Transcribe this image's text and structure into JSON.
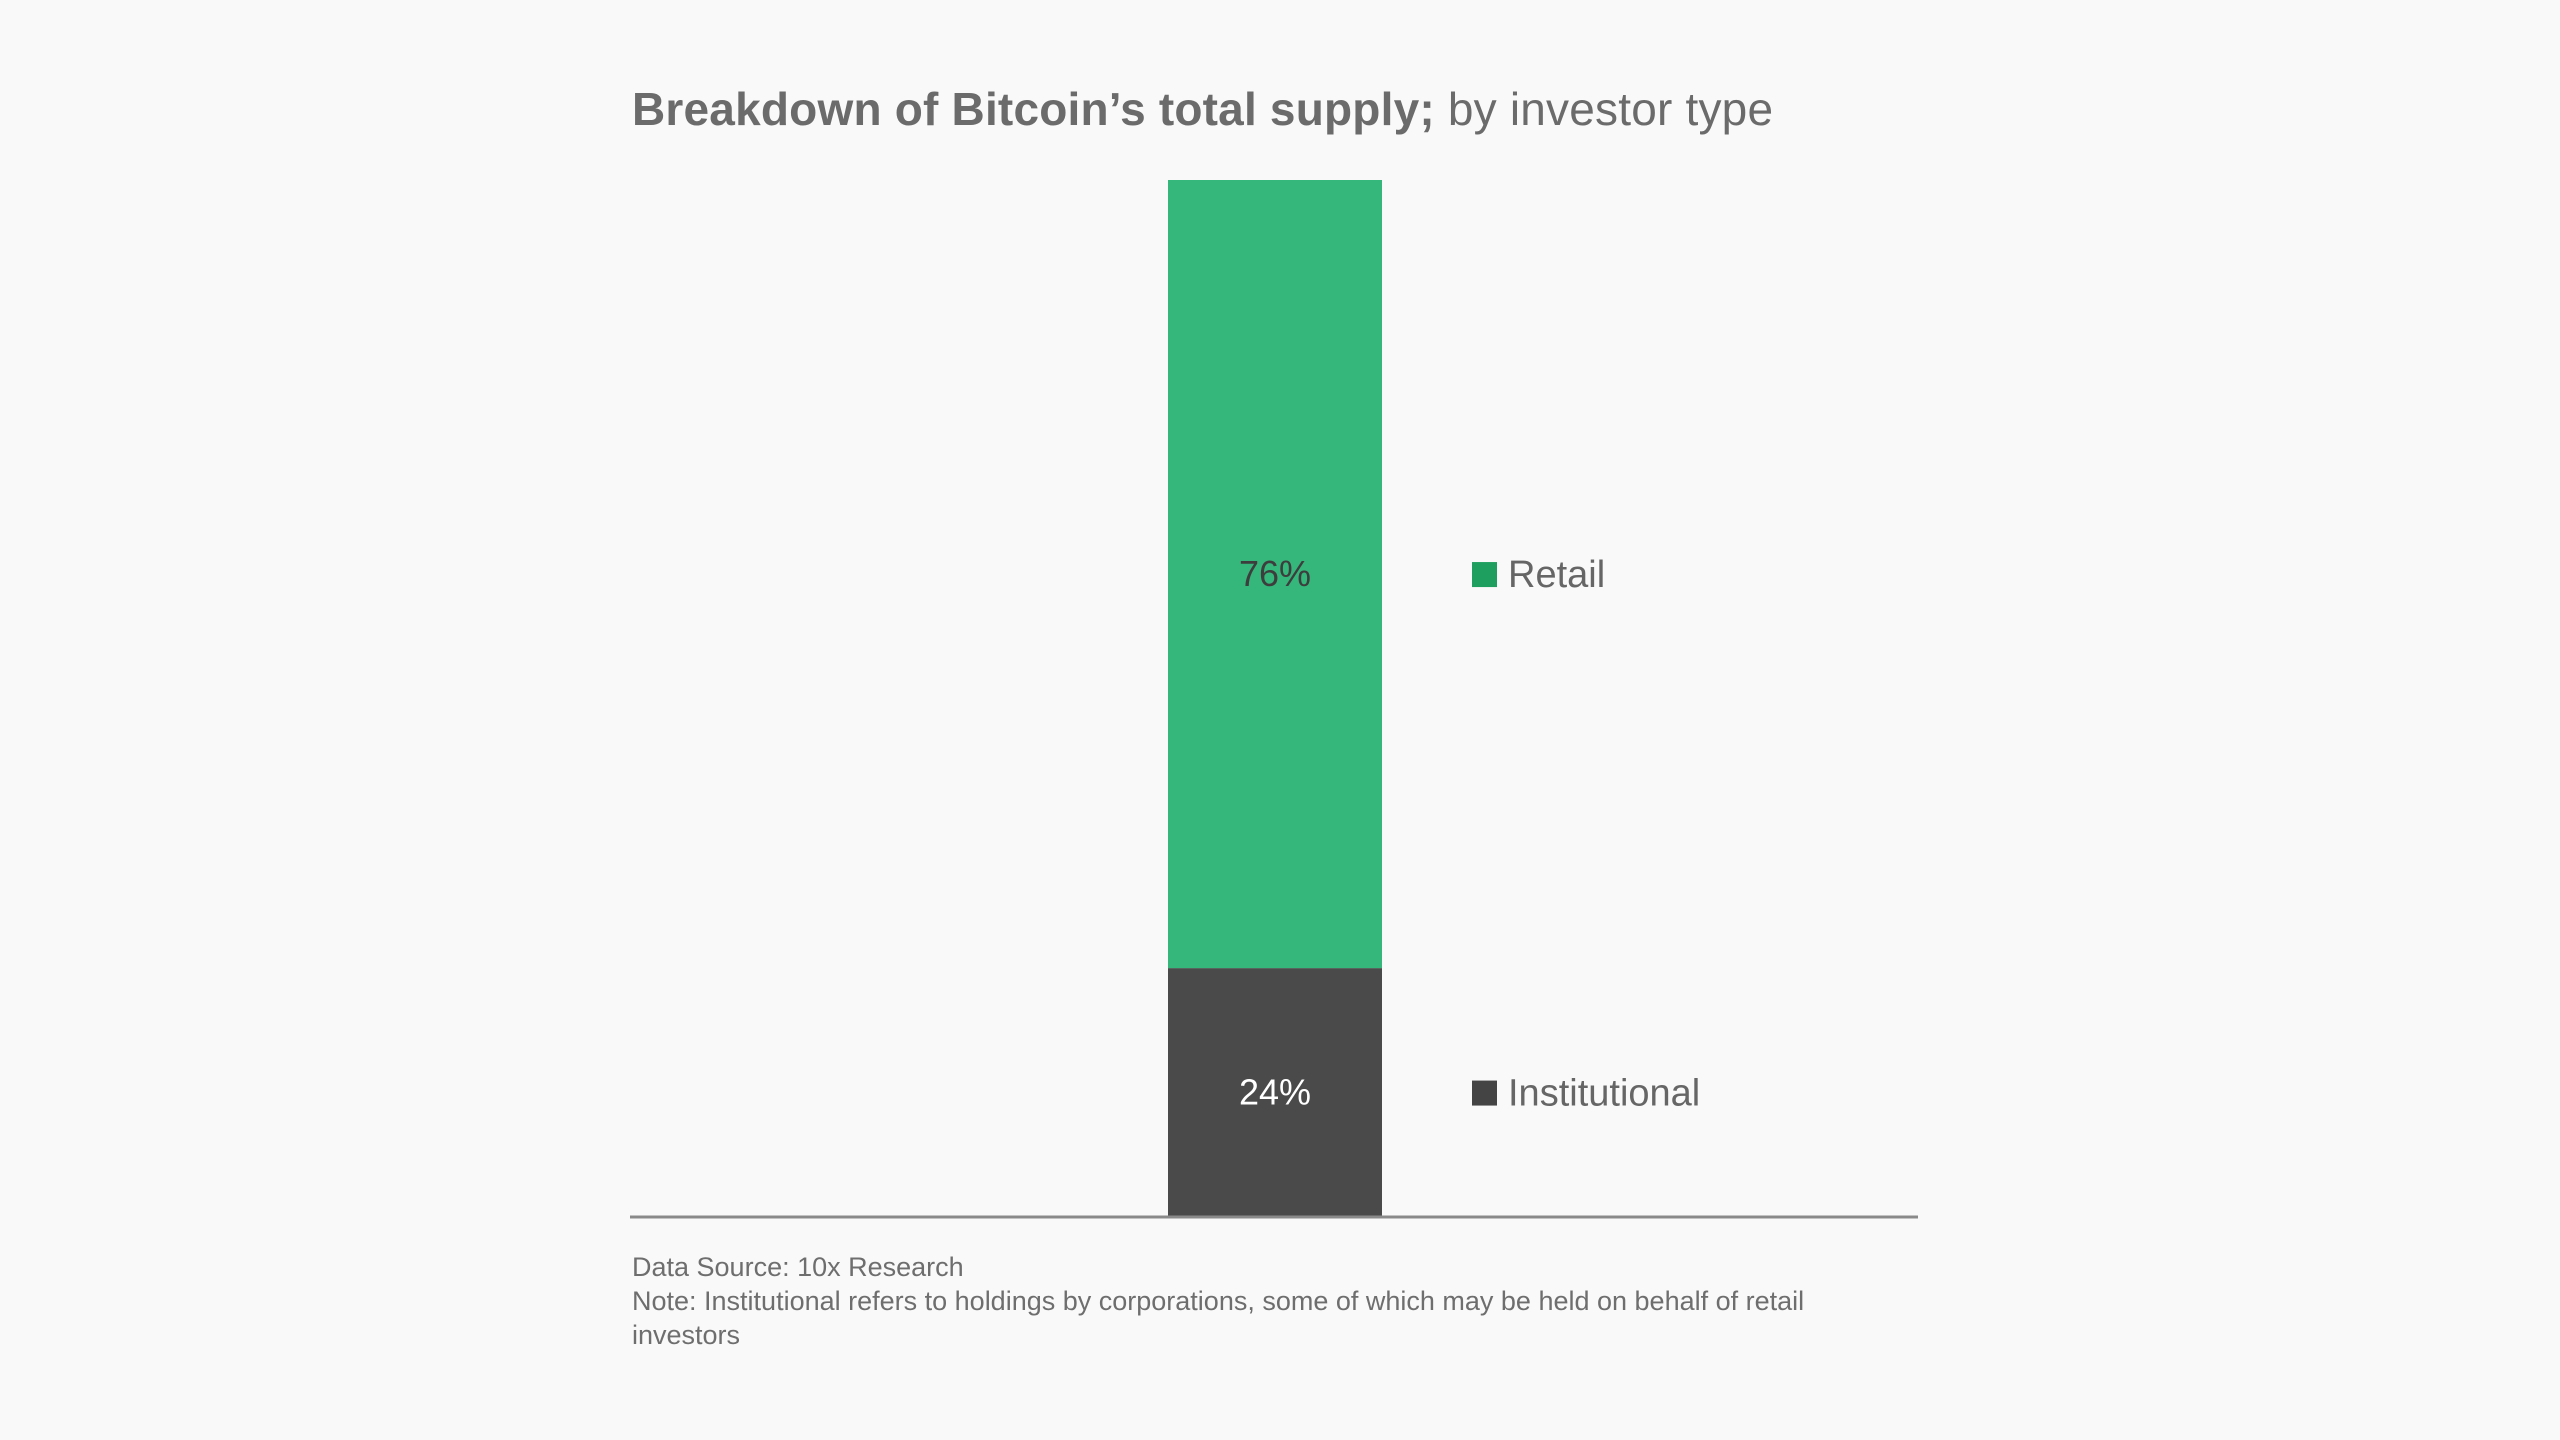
{
  "chart_data": {
    "type": "bar",
    "stacked": true,
    "title": "Breakdown of Bitcoin’s total supply;",
    "subtitle": "by investor type",
    "unit": "%",
    "ylim": [
      0,
      100
    ],
    "categories": [
      ""
    ],
    "series": [
      {
        "name": "Institutional",
        "values": [
          24
        ],
        "label": "24%",
        "color": "#4a4a4a",
        "label_color": "#ffffff"
      },
      {
        "name": "Retail",
        "values": [
          76
        ],
        "label": "76%",
        "color": "#35b67b",
        "label_color": "#3d3d3d"
      }
    ],
    "legend": [
      {
        "name": "Retail",
        "color": "#1e9e5f"
      },
      {
        "name": "Institutional",
        "color": "#444444"
      }
    ],
    "legend_placement": "right",
    "grid": false
  },
  "footnote": {
    "source": "Data Source: 10x Research",
    "note": "Note: Institutional refers to holdings by corporations, some of which may be held on behalf of retail investors"
  },
  "colors": {
    "background": "#f9f9f9",
    "axis": "#8a8a8a",
    "text": "#6b6b6b"
  }
}
